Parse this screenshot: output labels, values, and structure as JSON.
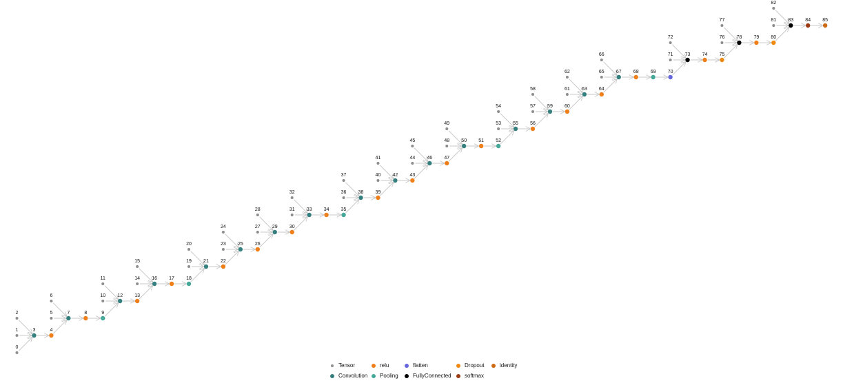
{
  "nodes": [
    {
      "label": "0",
      "type": "Tensor"
    },
    {
      "label": "1",
      "type": "Tensor"
    },
    {
      "label": "2",
      "type": "Tensor"
    },
    {
      "label": "3",
      "type": "Convolution"
    },
    {
      "label": "4",
      "type": "relu"
    },
    {
      "label": "5",
      "type": "Tensor"
    },
    {
      "label": "6",
      "type": "Tensor"
    },
    {
      "label": "7",
      "type": "Convolution"
    },
    {
      "label": "8",
      "type": "relu"
    },
    {
      "label": "9",
      "type": "Pooling"
    },
    {
      "label": "10",
      "type": "Tensor"
    },
    {
      "label": "11",
      "type": "Tensor"
    },
    {
      "label": "12",
      "type": "Convolution"
    },
    {
      "label": "13",
      "type": "relu"
    },
    {
      "label": "14",
      "type": "Tensor"
    },
    {
      "label": "15",
      "type": "Tensor"
    },
    {
      "label": "16",
      "type": "Convolution"
    },
    {
      "label": "17",
      "type": "relu"
    },
    {
      "label": "18",
      "type": "Pooling"
    },
    {
      "label": "19",
      "type": "Tensor"
    },
    {
      "label": "20",
      "type": "Tensor"
    },
    {
      "label": "21",
      "type": "Convolution"
    },
    {
      "label": "22",
      "type": "relu"
    },
    {
      "label": "23",
      "type": "Tensor"
    },
    {
      "label": "24",
      "type": "Tensor"
    },
    {
      "label": "25",
      "type": "Convolution"
    },
    {
      "label": "26",
      "type": "relu"
    },
    {
      "label": "27",
      "type": "Tensor"
    },
    {
      "label": "28",
      "type": "Tensor"
    },
    {
      "label": "29",
      "type": "Convolution"
    },
    {
      "label": "30",
      "type": "relu"
    },
    {
      "label": "31",
      "type": "Tensor"
    },
    {
      "label": "32",
      "type": "Tensor"
    },
    {
      "label": "33",
      "type": "Convolution"
    },
    {
      "label": "34",
      "type": "relu"
    },
    {
      "label": "35",
      "type": "Pooling"
    },
    {
      "label": "36",
      "type": "Tensor"
    },
    {
      "label": "37",
      "type": "Tensor"
    },
    {
      "label": "38",
      "type": "Convolution"
    },
    {
      "label": "39",
      "type": "relu"
    },
    {
      "label": "40",
      "type": "Tensor"
    },
    {
      "label": "41",
      "type": "Tensor"
    },
    {
      "label": "42",
      "type": "Convolution"
    },
    {
      "label": "43",
      "type": "relu"
    },
    {
      "label": "44",
      "type": "Tensor"
    },
    {
      "label": "45",
      "type": "Tensor"
    },
    {
      "label": "46",
      "type": "Convolution"
    },
    {
      "label": "47",
      "type": "relu"
    },
    {
      "label": "48",
      "type": "Tensor"
    },
    {
      "label": "49",
      "type": "Tensor"
    },
    {
      "label": "50",
      "type": "Convolution"
    },
    {
      "label": "51",
      "type": "relu"
    },
    {
      "label": "52",
      "type": "Pooling"
    },
    {
      "label": "53",
      "type": "Tensor"
    },
    {
      "label": "54",
      "type": "Tensor"
    },
    {
      "label": "55",
      "type": "Convolution"
    },
    {
      "label": "56",
      "type": "relu"
    },
    {
      "label": "57",
      "type": "Tensor"
    },
    {
      "label": "58",
      "type": "Tensor"
    },
    {
      "label": "59",
      "type": "Convolution"
    },
    {
      "label": "60",
      "type": "relu"
    },
    {
      "label": "61",
      "type": "Tensor"
    },
    {
      "label": "62",
      "type": "Tensor"
    },
    {
      "label": "63",
      "type": "Convolution"
    },
    {
      "label": "64",
      "type": "relu"
    },
    {
      "label": "65",
      "type": "Tensor"
    },
    {
      "label": "66",
      "type": "Tensor"
    },
    {
      "label": "67",
      "type": "Convolution"
    },
    {
      "label": "68",
      "type": "relu"
    },
    {
      "label": "69",
      "type": "Pooling"
    },
    {
      "label": "70",
      "type": "flatten"
    },
    {
      "label": "71",
      "type": "Tensor"
    },
    {
      "label": "72",
      "type": "Tensor"
    },
    {
      "label": "73",
      "type": "FullyConnected"
    },
    {
      "label": "74",
      "type": "relu"
    },
    {
      "label": "75",
      "type": "Dropout"
    },
    {
      "label": "76",
      "type": "Tensor"
    },
    {
      "label": "77",
      "type": "Tensor"
    },
    {
      "label": "78",
      "type": "FullyConnected"
    },
    {
      "label": "79",
      "type": "relu"
    },
    {
      "label": "80",
      "type": "Dropout"
    },
    {
      "label": "81",
      "type": "Tensor"
    },
    {
      "label": "82",
      "type": "Tensor"
    },
    {
      "label": "83",
      "type": "FullyConnected"
    },
    {
      "label": "84",
      "type": "softmax"
    },
    {
      "label": "85",
      "type": "identity"
    }
  ],
  "legend": [
    {
      "label": "Tensor",
      "color": "#8c8c8c"
    },
    {
      "label": "relu",
      "color": "#ef7f1a"
    },
    {
      "label": "flatten",
      "color": "#6666dd"
    },
    {
      "label": "Dropout",
      "color": "#ee8a14"
    },
    {
      "label": "identity",
      "color": "#cc6a14"
    },
    {
      "label": "Convolution",
      "color": "#367f7f"
    },
    {
      "label": "Pooling",
      "color": "#45a898"
    },
    {
      "label": "FullyConnected",
      "color": "#000000"
    },
    {
      "label": "softmax",
      "color": "#9c3a12"
    }
  ]
}
